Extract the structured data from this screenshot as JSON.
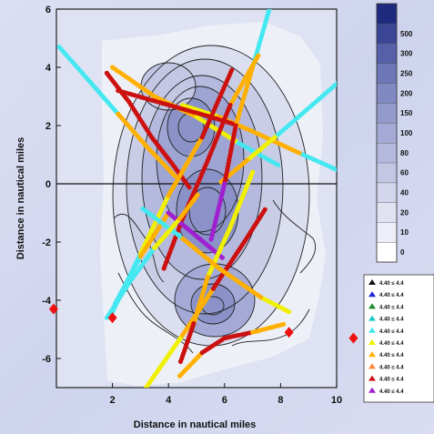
{
  "chart_data": {
    "type": "scatter",
    "title": "",
    "xlabel": "Distance in nautical miles",
    "ylabel": "Distance in nautical miles",
    "xlim": [
      0,
      10
    ],
    "ylim": [
      -7,
      6
    ],
    "x_ticks": [
      {
        "value": 2,
        "label": "2"
      },
      {
        "value": 4,
        "label": "4"
      },
      {
        "value": 6,
        "label": "6"
      },
      {
        "value": 8,
        "label": "8"
      },
      {
        "value": 10,
        "label": "10"
      }
    ],
    "y_ticks": [
      {
        "value": 6,
        "label": "6"
      },
      {
        "value": 4,
        "label": "4"
      },
      {
        "value": 2,
        "label": "2"
      },
      {
        "value": 0,
        "label": "0"
      },
      {
        "value": -2,
        "label": "-2"
      },
      {
        "value": -4,
        "label": "-4"
      },
      {
        "value": -6,
        "label": "-6"
      }
    ],
    "colorbar": {
      "levels": [
        "0",
        "10",
        "20",
        "40",
        "60",
        "80",
        "100",
        "150",
        "200",
        "250",
        "300",
        "500"
      ],
      "colors": [
        "#ffffff",
        "#eeeef8",
        "#e0e2f1",
        "#d2d5eb",
        "#c3c7e4",
        "#b4b9dd",
        "#a4aad5",
        "#939acc",
        "#8189c2",
        "#6d76b6",
        "#5660a8",
        "#3a4595",
        "#1e2a7e"
      ]
    },
    "legend": {
      "placement": "right",
      "entries": [
        {
          "label": "4.40 ≤ 4.4",
          "color": "#111111"
        },
        {
          "label": "4.40 ≤ 4.4",
          "color": "#2222dd"
        },
        {
          "label": "4.40 ≤ 4.4",
          "color": "#1a8a2a"
        },
        {
          "label": "4.40 ≤ 4.4",
          "color": "#22c8c8"
        },
        {
          "label": "4.40 ≤ 4.4",
          "color": "#44e8f0"
        },
        {
          "label": "4.40 ≤ 4.4",
          "color": "#f0f000"
        },
        {
          "label": "4.40 ≤ 4.4",
          "color": "#ffb000"
        },
        {
          "label": "4.40 ≤ 4.4",
          "color": "#ff8a40"
        },
        {
          "label": "4.40 ≤ 4.4",
          "color": "#cc1010"
        },
        {
          "label": "4.40 ≤ 4.4",
          "color": "#a020d0"
        }
      ]
    },
    "transects": [
      {
        "colors": [
          "#44e8f0",
          "#44e8f0",
          "#ffb000",
          "#ffb000",
          "#f0f000"
        ],
        "points": [
          [
            0.1,
            4.7
          ],
          [
            1.2,
            3.5
          ],
          [
            2.2,
            2.4
          ],
          [
            3.2,
            1.3
          ],
          [
            4.3,
            0.2
          ]
        ]
      },
      {
        "colors": [
          "#cc1010",
          "#cc1010",
          "#cc1010",
          "#cc1010",
          "#cc1010"
        ],
        "points": [
          [
            1.8,
            3.8
          ],
          [
            2.6,
            2.8
          ],
          [
            3.4,
            1.6
          ],
          [
            4.2,
            0.6
          ],
          [
            4.8,
            -0.2
          ]
        ]
      },
      {
        "colors": [
          "#ffb000",
          "#ffb000",
          "#f0f000",
          "#44e8f0",
          "#44e8f0"
        ],
        "points": [
          [
            2.0,
            4.0
          ],
          [
            3.5,
            3.0
          ],
          [
            5.0,
            2.3
          ],
          [
            6.5,
            1.4
          ],
          [
            8.0,
            0.6
          ]
        ]
      },
      {
        "colors": [
          "#f0f000",
          "#ffb000",
          "#ffb000",
          "#44e8f0",
          "#44e8f0"
        ],
        "points": [
          [
            4.5,
            2.7
          ],
          [
            5.8,
            2.3
          ],
          [
            7.0,
            1.8
          ],
          [
            8.8,
            1.0
          ],
          [
            10.2,
            0.4
          ]
        ]
      },
      {
        "colors": [
          "#cc1010",
          "#cc1010",
          "#cc1010",
          "#cc1010",
          "#cc1010"
        ],
        "points": [
          [
            2.2,
            3.2
          ],
          [
            3.3,
            2.9
          ],
          [
            4.4,
            2.6
          ],
          [
            5.5,
            2.3
          ],
          [
            6.5,
            2.0
          ]
        ]
      },
      {
        "colors": [
          "#44e8f0",
          "#44e8f0",
          "#f0f000",
          "#ffb000",
          "#ffb000"
        ],
        "points": [
          [
            10.2,
            3.6
          ],
          [
            9.0,
            2.6
          ],
          [
            7.8,
            1.6
          ],
          [
            6.8,
            0.8
          ],
          [
            5.8,
            0.0
          ]
        ]
      },
      {
        "colors": [
          "#44e8f0",
          "#ffb000",
          "#cc1010",
          "#a020d0",
          "#cc1010"
        ],
        "points": [
          [
            7.6,
            6.0
          ],
          [
            7.0,
            4.0
          ],
          [
            6.4,
            2.0
          ],
          [
            6.0,
            0.0
          ],
          [
            5.5,
            -2.0
          ]
        ]
      },
      {
        "colors": [
          "#ffb000",
          "#cc1010",
          "#cc1010",
          "#cc1010",
          "#cc1010"
        ],
        "points": [
          [
            7.2,
            4.4
          ],
          [
            6.2,
            2.7
          ],
          [
            5.4,
            0.8
          ],
          [
            4.5,
            -1.2
          ],
          [
            3.8,
            -3.0
          ]
        ]
      },
      {
        "colors": [
          "#44e8f0",
          "#f0f000",
          "#ffb000",
          "#cc1010",
          "#cc1010"
        ],
        "points": [
          [
            2.0,
            -4.4
          ],
          [
            3.0,
            -2.4
          ],
          [
            4.0,
            -0.4
          ],
          [
            5.2,
            1.6
          ],
          [
            6.3,
            4.0
          ]
        ]
      },
      {
        "colors": [
          "#44e8f0",
          "#ffb000",
          "#a020d0",
          "#a020d0",
          "#f0f000"
        ],
        "points": [
          [
            2.1,
            -4.1
          ],
          [
            3.0,
            -2.5
          ],
          [
            4.0,
            -1.0
          ],
          [
            5.0,
            -1.8
          ],
          [
            6.0,
            -2.6
          ]
        ]
      },
      {
        "colors": [
          "#f0f000",
          "#ffb000",
          "#cc1010",
          "#cc1010",
          "#cc1010"
        ],
        "points": [
          [
            3.2,
            -7.0
          ],
          [
            4.5,
            -5.2
          ],
          [
            5.6,
            -3.6
          ],
          [
            6.7,
            -2.0
          ],
          [
            7.5,
            -0.8
          ]
        ]
      },
      {
        "colors": [
          "#f0f000",
          "#f0f000",
          "#ffb000",
          "#cc1010",
          "#cc1010"
        ],
        "points": [
          [
            7.0,
            0.4
          ],
          [
            6.2,
            -1.5
          ],
          [
            5.4,
            -3.2
          ],
          [
            4.9,
            -4.8
          ],
          [
            4.4,
            -6.2
          ]
        ]
      },
      {
        "colors": [
          "#ffb000",
          "#cc1010",
          "#cc1010",
          "#ffb000",
          "#cc1010"
        ],
        "points": [
          [
            4.4,
            -6.6
          ],
          [
            5.2,
            -5.8
          ],
          [
            6.0,
            -5.3
          ],
          [
            7.0,
            -5.1
          ],
          [
            8.2,
            -4.8
          ]
        ]
      },
      {
        "colors": [
          "#f0f000",
          "#ffb000",
          "#ffb000",
          "#44e8f0",
          "#44e8f0"
        ],
        "points": [
          [
            8.3,
            -4.4
          ],
          [
            7.3,
            -3.9
          ],
          [
            5.8,
            -2.9
          ],
          [
            4.4,
            -1.8
          ],
          [
            3.0,
            -0.8
          ]
        ]
      },
      {
        "colors": [
          "#44e8f0",
          "#44e8f0",
          "#f0f000",
          "#ffb000",
          "#ffb000"
        ],
        "points": [
          [
            1.8,
            -4.6
          ],
          [
            2.6,
            -3.4
          ],
          [
            3.5,
            -2.2
          ],
          [
            4.4,
            -1.2
          ],
          [
            5.1,
            -0.3
          ]
        ]
      }
    ],
    "markers": [
      {
        "x": -0.1,
        "y": -4.3,
        "color": "#ee1111"
      },
      {
        "x": 2.0,
        "y": -4.6,
        "color": "#ee1111"
      },
      {
        "x": 8.3,
        "y": -5.1,
        "color": "#ee1111"
      },
      {
        "x": 10.6,
        "y": -5.3,
        "color": "#ee1111"
      }
    ],
    "zero_line": {
      "y": 0
    }
  }
}
